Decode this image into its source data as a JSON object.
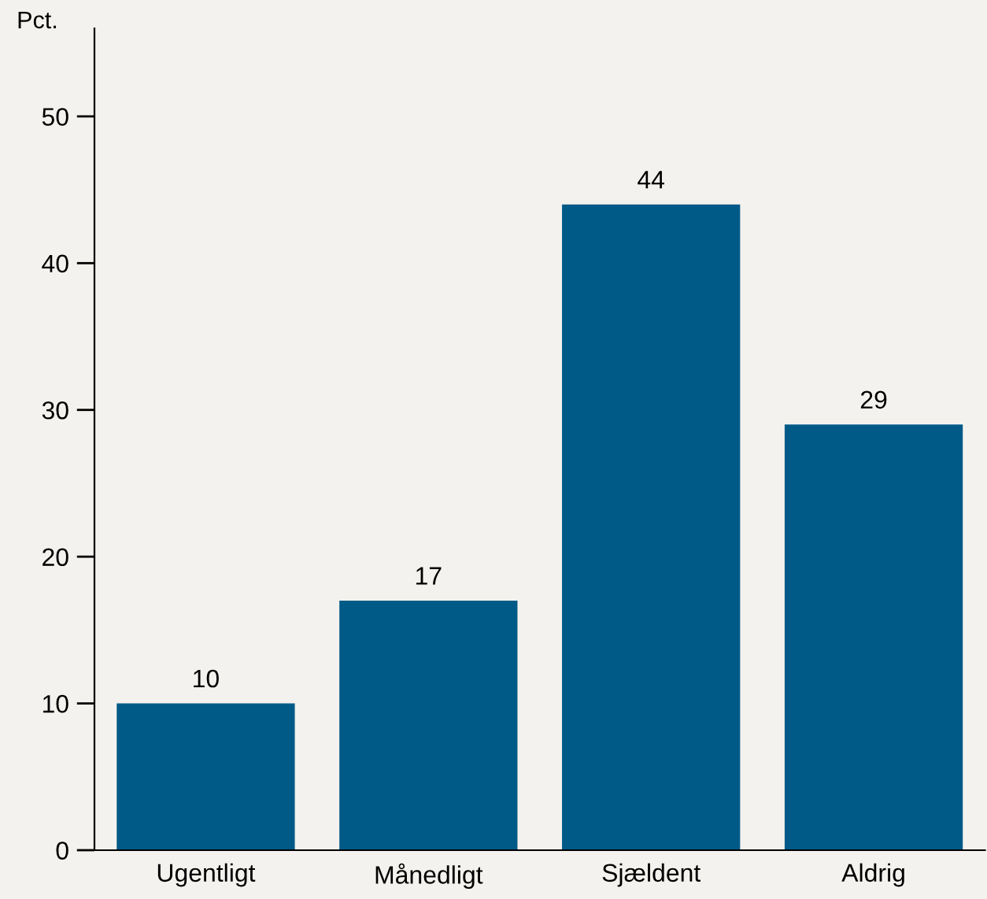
{
  "chart_data": {
    "type": "bar",
    "ylabel": "Pct.",
    "categories": [
      "Ugentligt",
      "Månedligt",
      "Sjældent",
      "Aldrig"
    ],
    "values": [
      10,
      17,
      44,
      29
    ],
    "color": "#005a87",
    "ylim": [
      0,
      56
    ],
    "yticks": [
      0,
      10,
      20,
      30,
      40,
      50
    ],
    "grid": false,
    "data_labels": true
  }
}
